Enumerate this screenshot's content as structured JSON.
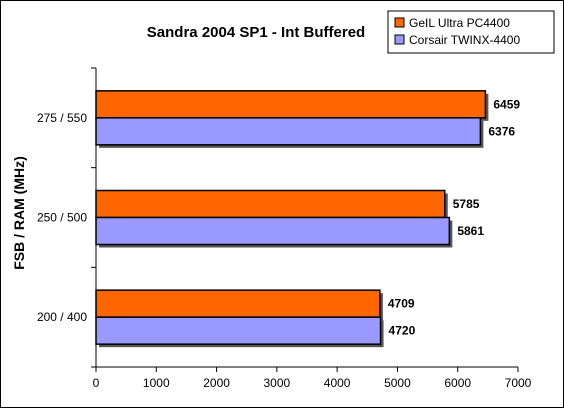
{
  "chart_data": {
    "type": "bar",
    "orientation": "horizontal",
    "title": "Sandra 2004 SP1 - Int Buffered",
    "ylabel": "FSB / RAM (MHz)",
    "xlabel": "",
    "categories": [
      "275 / 550",
      "250 / 500",
      "200 / 400"
    ],
    "xlim": [
      0,
      7000
    ],
    "xticks": [
      0,
      1000,
      2000,
      3000,
      4000,
      5000,
      6000,
      7000
    ],
    "grid": false,
    "legend_position": "top-right",
    "series": [
      {
        "name": "GeIL Ultra PC4400",
        "color": "#ff6600",
        "values": [
          6459,
          5785,
          4709
        ]
      },
      {
        "name": "Corsair TWINX-4400",
        "color": "#9999ff",
        "values": [
          6376,
          5861,
          4720
        ]
      }
    ]
  }
}
